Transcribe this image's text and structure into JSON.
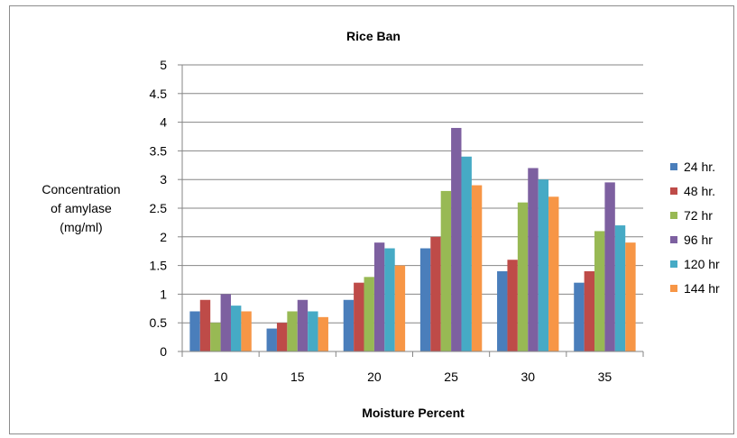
{
  "chart_data": {
    "type": "bar",
    "title": "Rice Ban",
    "xlabel": "Moisture Percent",
    "ylabel": [
      "Concentration",
      "of amylase",
      "(mg/ml)"
    ],
    "categories": [
      "10",
      "15",
      "20",
      "25",
      "30",
      "35"
    ],
    "ylim": [
      0,
      5
    ],
    "yticks": [
      "0",
      "0.5",
      "1",
      "1.5",
      "2",
      "2.5",
      "3",
      "3.5",
      "4",
      "4.5",
      "5"
    ],
    "grid": true,
    "legend_position": "right",
    "series": [
      {
        "name": "24 hr.",
        "color": "#4a7ebb",
        "values": [
          0.7,
          0.4,
          0.9,
          1.8,
          1.4,
          1.2
        ]
      },
      {
        "name": "48 hr.",
        "color": "#be4b48",
        "values": [
          0.9,
          0.5,
          1.2,
          2.0,
          1.6,
          1.4
        ]
      },
      {
        "name": "72 hr",
        "color": "#98b954",
        "values": [
          0.5,
          0.7,
          1.3,
          2.8,
          2.6,
          2.1
        ]
      },
      {
        "name": "96 hr",
        "color": "#7d60a0",
        "values": [
          1.0,
          0.9,
          1.9,
          3.9,
          3.2,
          2.95
        ]
      },
      {
        "name": "120 hr",
        "color": "#46aac5",
        "values": [
          0.8,
          0.7,
          1.8,
          3.4,
          3.0,
          2.2
        ]
      },
      {
        "name": "144 hr",
        "color": "#f79646",
        "values": [
          0.7,
          0.6,
          1.5,
          2.9,
          2.7,
          1.9
        ]
      }
    ]
  }
}
